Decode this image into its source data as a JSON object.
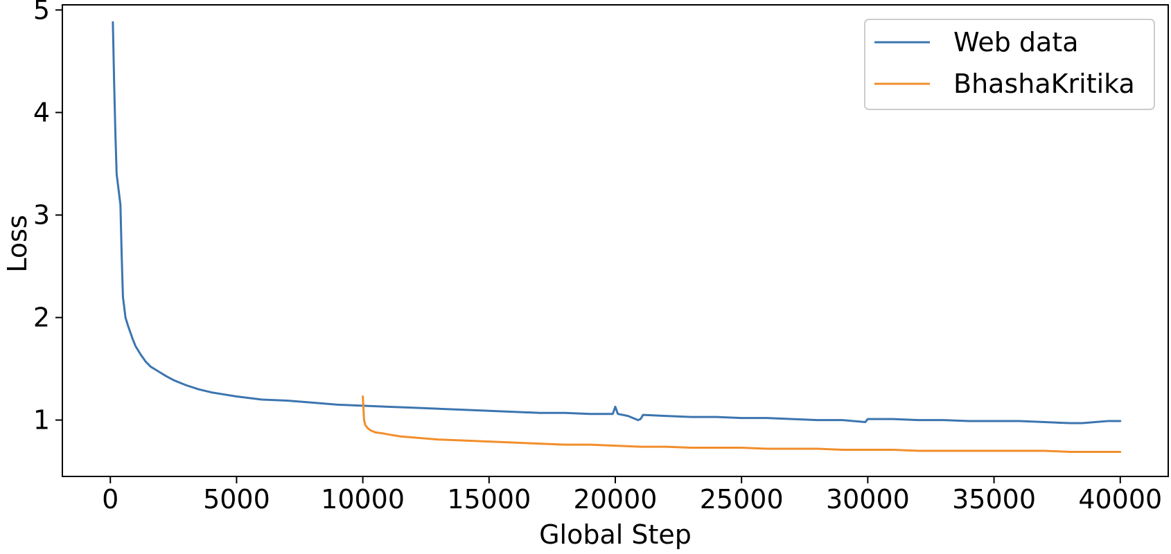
{
  "chart_data": {
    "type": "line",
    "title": "",
    "xlabel": "Global Step",
    "ylabel": "Loss",
    "xlim": [
      -1900,
      41900
    ],
    "ylim": [
      0.45,
      5.05
    ],
    "xticks": [
      0,
      5000,
      10000,
      15000,
      20000,
      25000,
      30000,
      35000,
      40000
    ],
    "xtick_labels": [
      "0",
      "5000",
      "10000",
      "15000",
      "20000",
      "25000",
      "30000",
      "35000",
      "40000"
    ],
    "yticks": [
      1,
      2,
      3,
      4,
      5
    ],
    "ytick_labels": [
      "1",
      "2",
      "3",
      "4",
      "5"
    ],
    "grid": false,
    "legend": {
      "position": "upper-right",
      "entries": [
        "Web data",
        "BhashaKritika"
      ]
    },
    "series": [
      {
        "name": "Web data",
        "color": "#3b75af",
        "x": [
          100,
          150,
          200,
          250,
          300,
          350,
          400,
          450,
          500,
          550,
          600,
          700,
          800,
          900,
          1000,
          1200,
          1400,
          1600,
          1800,
          2000,
          2200,
          2500,
          3000,
          3500,
          4000,
          4500,
          5000,
          6000,
          7000,
          8000,
          9000,
          10000,
          11000,
          12000,
          13000,
          14000,
          15000,
          16000,
          17000,
          18000,
          19000,
          19900,
          20000,
          20100,
          20500,
          20900,
          21000,
          21100,
          22000,
          23000,
          24000,
          25000,
          26000,
          27000,
          28000,
          29000,
          29900,
          30000,
          31000,
          32000,
          33000,
          34000,
          35000,
          36000,
          37000,
          38000,
          38500,
          39000,
          39500,
          40000
        ],
        "y": [
          4.88,
          4.3,
          3.8,
          3.4,
          3.3,
          3.2,
          3.1,
          2.6,
          2.2,
          2.1,
          2.0,
          1.92,
          1.85,
          1.78,
          1.72,
          1.64,
          1.57,
          1.52,
          1.49,
          1.46,
          1.43,
          1.39,
          1.34,
          1.3,
          1.27,
          1.25,
          1.23,
          1.2,
          1.19,
          1.17,
          1.15,
          1.14,
          1.13,
          1.12,
          1.11,
          1.1,
          1.09,
          1.08,
          1.07,
          1.07,
          1.06,
          1.06,
          1.13,
          1.06,
          1.04,
          1.0,
          1.01,
          1.05,
          1.04,
          1.03,
          1.03,
          1.02,
          1.02,
          1.01,
          1.0,
          1.0,
          0.98,
          1.01,
          1.01,
          1.0,
          1.0,
          0.99,
          0.99,
          0.99,
          0.98,
          0.97,
          0.97,
          0.98,
          0.99,
          0.99
        ]
      },
      {
        "name": "BhashaKritika",
        "color": "#f28e2c",
        "x": [
          10000,
          10050,
          10100,
          10200,
          10300,
          10500,
          10800,
          11000,
          11500,
          12000,
          13000,
          14000,
          15000,
          16000,
          17000,
          18000,
          19000,
          20000,
          21000,
          22000,
          23000,
          24000,
          25000,
          26000,
          27000,
          28000,
          29000,
          30000,
          31000,
          32000,
          33000,
          34000,
          35000,
          36000,
          37000,
          38000,
          39000,
          40000
        ],
        "y": [
          1.23,
          1.0,
          0.95,
          0.92,
          0.9,
          0.88,
          0.87,
          0.86,
          0.84,
          0.83,
          0.81,
          0.8,
          0.79,
          0.78,
          0.77,
          0.76,
          0.76,
          0.75,
          0.74,
          0.74,
          0.73,
          0.73,
          0.73,
          0.72,
          0.72,
          0.72,
          0.71,
          0.71,
          0.71,
          0.7,
          0.7,
          0.7,
          0.7,
          0.7,
          0.7,
          0.69,
          0.69,
          0.69
        ]
      }
    ]
  }
}
